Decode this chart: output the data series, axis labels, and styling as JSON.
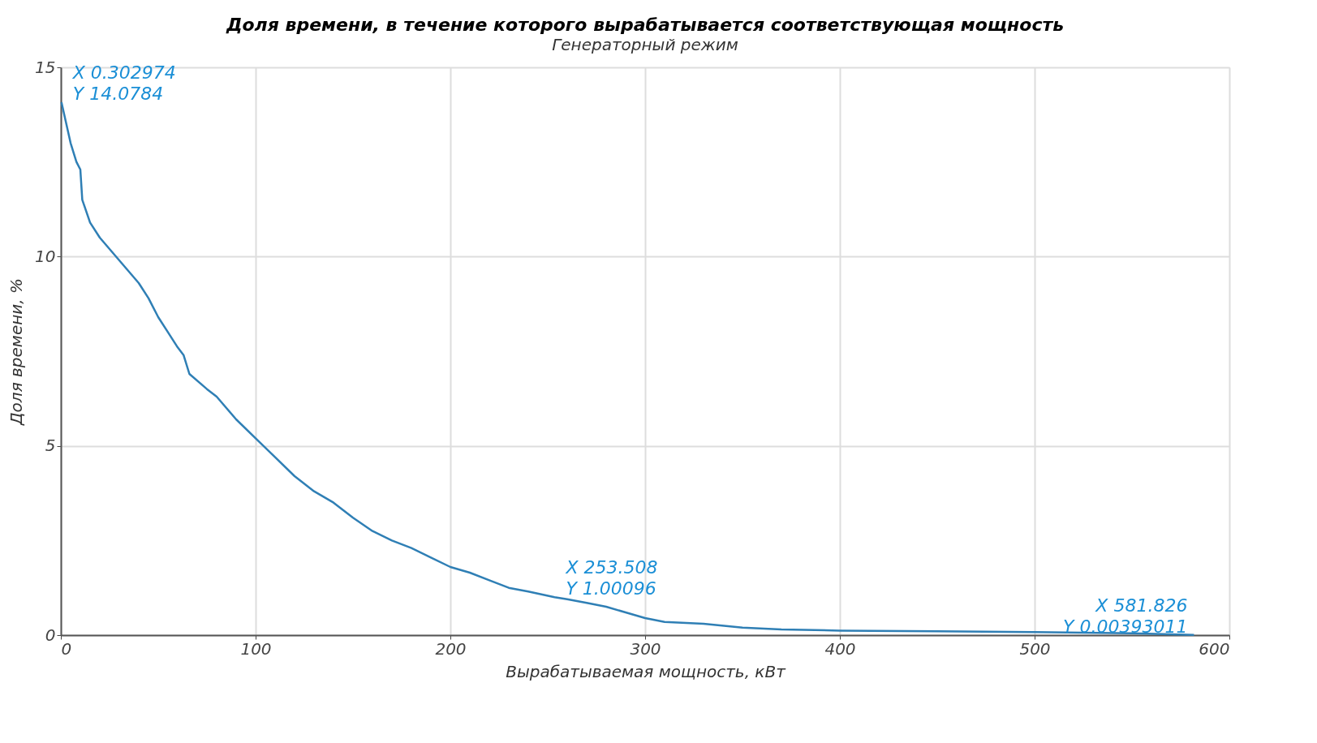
{
  "chart_data": {
    "type": "line",
    "title": "Доля времени, в течение которого вырабатывается соответствующая мощность",
    "subtitle": "Генераторный режим",
    "xlabel": "Вырабатываемая мощность, кВт",
    "ylabel": "Доля времени, %",
    "xlim": [
      0,
      600
    ],
    "ylim": [
      0,
      15
    ],
    "xticks": [
      0,
      100,
      200,
      300,
      400,
      500,
      600
    ],
    "yticks": [
      0,
      5,
      10,
      15
    ],
    "grid": true,
    "marker": "none",
    "line_style": "solid",
    "x": [
      0.302974,
      5,
      8,
      10,
      11,
      15,
      20,
      30,
      40,
      45,
      50,
      55,
      60,
      63,
      66,
      75,
      80,
      90,
      100,
      110,
      120,
      130,
      140,
      150,
      160,
      170,
      180,
      190,
      200,
      210,
      220,
      230,
      240,
      253.508,
      260,
      270,
      280,
      290,
      300,
      310,
      330,
      350,
      370,
      400,
      450,
      500,
      550,
      581.826
    ],
    "series": [
      {
        "color": "#2f7fb5",
        "values": [
          14.0784,
          13,
          12.5,
          12.3,
          11.5,
          10.9,
          10.5,
          9.9,
          9.3,
          8.9,
          8.4,
          8.0,
          7.6,
          7.4,
          6.9,
          6.5,
          6.3,
          5.7,
          5.2,
          4.7,
          4.2,
          3.8,
          3.5,
          3.1,
          2.75,
          2.5,
          2.3,
          2.05,
          1.8,
          1.65,
          1.45,
          1.25,
          1.15,
          1.00096,
          0.95,
          0.85,
          0.75,
          0.6,
          0.45,
          0.35,
          0.3,
          0.2,
          0.15,
          0.12,
          0.1,
          0.08,
          0.05,
          0.00393011
        ]
      }
    ],
    "annotations": [
      {
        "text": "X 0.302974\nY 14.0784",
        "x": 0.302974,
        "y": 14.0784
      },
      {
        "text": "X 253.508\nY 1.00096",
        "x": 253.508,
        "y": 1.00096
      },
      {
        "text": "X 581.826\nY 0.00393011",
        "x": 581.826,
        "y": 0.00393011
      }
    ]
  }
}
